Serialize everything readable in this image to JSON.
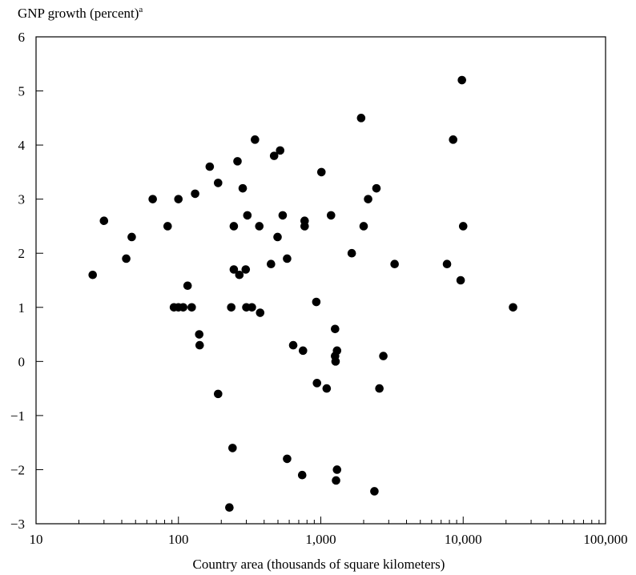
{
  "chart_data": {
    "type": "scatter",
    "title": "",
    "ylabel": "GNP growth (percent)",
    "ylabel_superscript": "a",
    "xlabel": "Country area (thousands of square kilometers)",
    "x_scale": "log",
    "xlim": [
      10,
      100000
    ],
    "ylim": [
      -3,
      6
    ],
    "grid": false,
    "x_ticks": [
      {
        "value": 10,
        "label": "10"
      },
      {
        "value": 100,
        "label": "100"
      },
      {
        "value": 1000,
        "label": "1,000"
      },
      {
        "value": 10000,
        "label": "10,000"
      },
      {
        "value": 100000,
        "label": "100,000"
      }
    ],
    "y_ticks": [
      {
        "value": -3,
        "label": "−3"
      },
      {
        "value": -2,
        "label": "−2"
      },
      {
        "value": -1,
        "label": "−1"
      },
      {
        "value": 0,
        "label": "0"
      },
      {
        "value": 1,
        "label": "1"
      },
      {
        "value": 2,
        "label": "2"
      },
      {
        "value": 3,
        "label": "3"
      },
      {
        "value": 4,
        "label": "4"
      },
      {
        "value": 5,
        "label": "5"
      },
      {
        "value": 6,
        "label": "6"
      }
    ],
    "point_color": "#000000",
    "points": [
      {
        "x": 25,
        "y": 1.6
      },
      {
        "x": 30,
        "y": 2.6
      },
      {
        "x": 43,
        "y": 1.9
      },
      {
        "x": 47,
        "y": 2.3
      },
      {
        "x": 66,
        "y": 3.0
      },
      {
        "x": 84,
        "y": 2.5
      },
      {
        "x": 93,
        "y": 1.0
      },
      {
        "x": 100,
        "y": 3.0
      },
      {
        "x": 100,
        "y": 1.0
      },
      {
        "x": 108,
        "y": 1.0
      },
      {
        "x": 116,
        "y": 1.4
      },
      {
        "x": 124,
        "y": 1.0
      },
      {
        "x": 131,
        "y": 3.1
      },
      {
        "x": 140,
        "y": 0.5
      },
      {
        "x": 141,
        "y": 0.3
      },
      {
        "x": 166,
        "y": 3.6
      },
      {
        "x": 190,
        "y": 3.3
      },
      {
        "x": 190,
        "y": -0.6
      },
      {
        "x": 228,
        "y": -2.7
      },
      {
        "x": 235,
        "y": 1.0
      },
      {
        "x": 240,
        "y": -1.6
      },
      {
        "x": 245,
        "y": 1.7
      },
      {
        "x": 245,
        "y": 2.5
      },
      {
        "x": 260,
        "y": 3.7
      },
      {
        "x": 268,
        "y": 1.6
      },
      {
        "x": 283,
        "y": 3.2
      },
      {
        "x": 297,
        "y": 1.7
      },
      {
        "x": 300,
        "y": 1.0
      },
      {
        "x": 305,
        "y": 2.7
      },
      {
        "x": 328,
        "y": 1.0
      },
      {
        "x": 345,
        "y": 4.1
      },
      {
        "x": 375,
        "y": 0.9
      },
      {
        "x": 370,
        "y": 2.5
      },
      {
        "x": 447,
        "y": 1.8
      },
      {
        "x": 470,
        "y": 3.8
      },
      {
        "x": 497,
        "y": 2.3
      },
      {
        "x": 518,
        "y": 3.9
      },
      {
        "x": 540,
        "y": 2.7
      },
      {
        "x": 580,
        "y": 1.9
      },
      {
        "x": 580,
        "y": -1.8
      },
      {
        "x": 640,
        "y": 0.3
      },
      {
        "x": 740,
        "y": -2.1
      },
      {
        "x": 750,
        "y": 0.2
      },
      {
        "x": 770,
        "y": 2.6
      },
      {
        "x": 770,
        "y": 2.5
      },
      {
        "x": 930,
        "y": 1.1
      },
      {
        "x": 940,
        "y": -0.4
      },
      {
        "x": 1010,
        "y": 3.5
      },
      {
        "x": 1100,
        "y": -0.5
      },
      {
        "x": 1180,
        "y": 2.7
      },
      {
        "x": 1260,
        "y": 0.6
      },
      {
        "x": 1260,
        "y": 0.1
      },
      {
        "x": 1270,
        "y": 0.0
      },
      {
        "x": 1280,
        "y": -2.2
      },
      {
        "x": 1300,
        "y": 0.2
      },
      {
        "x": 1300,
        "y": -2.0
      },
      {
        "x": 1650,
        "y": 2.0
      },
      {
        "x": 1920,
        "y": 4.5
      },
      {
        "x": 2000,
        "y": 2.5
      },
      {
        "x": 2150,
        "y": 3.0
      },
      {
        "x": 2380,
        "y": -2.4
      },
      {
        "x": 2460,
        "y": 3.2
      },
      {
        "x": 2580,
        "y": -0.5
      },
      {
        "x": 2750,
        "y": 0.1
      },
      {
        "x": 3300,
        "y": 1.8
      },
      {
        "x": 7700,
        "y": 1.8
      },
      {
        "x": 8500,
        "y": 4.1
      },
      {
        "x": 9600,
        "y": 1.5
      },
      {
        "x": 9800,
        "y": 5.2
      },
      {
        "x": 10000,
        "y": 2.5
      },
      {
        "x": 22400,
        "y": 1.0
      }
    ]
  }
}
